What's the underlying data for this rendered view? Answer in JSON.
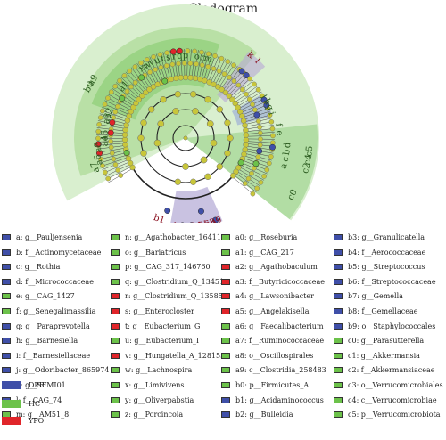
{
  "title": "Cladogram",
  "colors": {
    "DPR": "#3f4fa8",
    "HC": "#6cc24a",
    "YPO": "#e0252a",
    "node": "#c8c63a",
    "ring": "#9bd08a"
  },
  "groups": [
    {
      "name": "DPR",
      "color": "#3f4fa8"
    },
    {
      "name": "HC",
      "color": "#6cc24a"
    },
    {
      "name": "YPO",
      "color": "#e0252a"
    }
  ],
  "legend": [
    [
      {
        "text": "a: g__Pauljensenia",
        "group": "DPR"
      },
      {
        "text": "b: f__Actinomycetaceae",
        "group": "DPR"
      },
      {
        "text": "c: g__Rothia",
        "group": "DPR"
      },
      {
        "text": "d: f__Micrococcaceae",
        "group": "DPR"
      },
      {
        "text": "e: g__CAG_1427",
        "group": "HC"
      },
      {
        "text": "f: g__Senegalimassilia",
        "group": "HC"
      },
      {
        "text": "g: g__Paraprevotella",
        "group": "DPR"
      },
      {
        "text": "h: g__Barnesiella",
        "group": "DPR"
      },
      {
        "text": "i: f__Barnesiellaceae",
        "group": "DPR"
      },
      {
        "text": "j: g__Odoribacter_865974",
        "group": "DPR"
      },
      {
        "text": "k: g__SFMI01",
        "group": "DPR"
      },
      {
        "text": "l: f__CAG_74",
        "group": "DPR"
      },
      {
        "text": "m: g__AM51_8",
        "group": "HC"
      }
    ],
    [
      {
        "text": "n: g__Agathobacter_164117",
        "group": "HC"
      },
      {
        "text": "o: g__Bariatricus",
        "group": "HC"
      },
      {
        "text": "p: g__CAG_317_146760",
        "group": "HC"
      },
      {
        "text": "q: g__Clostridium_Q_134516",
        "group": "HC"
      },
      {
        "text": "r: g__Clostridium_Q_135853",
        "group": "YPO"
      },
      {
        "text": "s: g__Enterocloster",
        "group": "YPO"
      },
      {
        "text": "t: g__Eubacterium_G",
        "group": "YPO"
      },
      {
        "text": "u: g__Eubacterium_I",
        "group": "HC"
      },
      {
        "text": "v: g__Hungatella_A_128155",
        "group": "YPO"
      },
      {
        "text": "w: g__Lachnospira",
        "group": "HC"
      },
      {
        "text": "x: g__Limivivens",
        "group": "HC"
      },
      {
        "text": "y: g__Oliverpabstia",
        "group": "HC"
      },
      {
        "text": "z: g__Porcincola",
        "group": "HC"
      }
    ],
    [
      {
        "text": "a0: g__Roseburia",
        "group": "HC"
      },
      {
        "text": "a1: g__CAG_217",
        "group": "HC"
      },
      {
        "text": "a2: g__Agathobaculum",
        "group": "YPO"
      },
      {
        "text": "a3: f__Butyricicoccaceae",
        "group": "YPO"
      },
      {
        "text": "a4: g__Lawsonibacter",
        "group": "YPO"
      },
      {
        "text": "a5: g__Angelakisella",
        "group": "YPO"
      },
      {
        "text": "a6: g__Faecalibacterium",
        "group": "HC"
      },
      {
        "text": "a7: f__Ruminococcaceae",
        "group": "HC"
      },
      {
        "text": "a8: o__Oscillospirales",
        "group": "HC"
      },
      {
        "text": "a9: c__Clostridia_258483",
        "group": "HC"
      },
      {
        "text": "b0: p__Firmicutes_A",
        "group": "HC"
      },
      {
        "text": "b1: g__Acidaminococcus",
        "group": "DPR"
      },
      {
        "text": "b2: g__Bulleidia",
        "group": "DPR"
      }
    ],
    [
      {
        "text": "b3: g__Granulicatella",
        "group": "DPR"
      },
      {
        "text": "b4: f__Aerococcaceae",
        "group": "DPR"
      },
      {
        "text": "b5: g__Streptococcus",
        "group": "DPR"
      },
      {
        "text": "b6: f__Streptococcaceae",
        "group": "DPR"
      },
      {
        "text": "b7: g__Gemella",
        "group": "DPR"
      },
      {
        "text": "b8: f__Gemellaceae",
        "group": "DPR"
      },
      {
        "text": "b9: o__Staphylococcales",
        "group": "DPR"
      },
      {
        "text": "c0: g__Parasutterella",
        "group": "HC"
      },
      {
        "text": "c1: g__Akkermansia",
        "group": "HC"
      },
      {
        "text": "c2: f__Akkermansiaceae",
        "group": "HC"
      },
      {
        "text": "c3: o__Verrucomicrobiales",
        "group": "HC"
      },
      {
        "text": "c4: c__Verrucomicrobiae",
        "group": "HC"
      },
      {
        "text": "c5: p__Verrucomicrobiota",
        "group": "HC"
      }
    ]
  ],
  "outer_labels": [
    {
      "text": "b0",
      "angle": -62,
      "r": 122,
      "color": "#2a5a1e"
    },
    {
      "text": "a9",
      "angle": -58,
      "r": 122,
      "color": "#2a5a1e"
    },
    {
      "text": "x",
      "angle": -32,
      "r": 92,
      "color": "#2a5a1e"
    },
    {
      "text": "w",
      "angle": -28,
      "r": 92,
      "color": "#2a5a1e"
    },
    {
      "text": "v",
      "angle": -24,
      "r": 92,
      "color": "#2a5a1e"
    },
    {
      "text": "u",
      "angle": -20,
      "r": 92,
      "color": "#2a5a1e"
    },
    {
      "text": "t",
      "angle": -16,
      "r": 92,
      "color": "#2a5a1e"
    },
    {
      "text": "s",
      "angle": -12,
      "r": 92,
      "color": "#2a5a1e"
    },
    {
      "text": "r",
      "angle": -8,
      "r": 92,
      "color": "#2a5a1e"
    },
    {
      "text": "q",
      "angle": -4,
      "r": 92,
      "color": "#2a5a1e"
    },
    {
      "text": "p",
      "angle": 0,
      "r": 92,
      "color": "#2a5a1e"
    },
    {
      "text": "o",
      "angle": 8,
      "r": 92,
      "color": "#2a5a1e"
    },
    {
      "text": "r",
      "angle": 12,
      "r": 92,
      "color": "#2a5a1e"
    },
    {
      "text": "m",
      "angle": 16,
      "r": 92,
      "color": "#2a5a1e"
    },
    {
      "text": "k",
      "angle": 38,
      "r": 118,
      "color": "#8a1020"
    },
    {
      "text": "l",
      "angle": 43,
      "r": 118,
      "color": "#8a1020"
    },
    {
      "text": "j",
      "angle": 62,
      "r": 100,
      "color": "#2a5a1e"
    },
    {
      "text": "h",
      "angle": 66,
      "r": 100,
      "color": "#2a5a1e"
    },
    {
      "text": "g",
      "angle": 70,
      "r": 100,
      "color": "#2a5a1e"
    },
    {
      "text": "i",
      "angle": 74,
      "r": 100,
      "color": "#2a5a1e"
    },
    {
      "text": "f",
      "angle": 82,
      "r": 105,
      "color": "#2a5a1e"
    },
    {
      "text": "e",
      "angle": 87,
      "r": 105,
      "color": "#2a5a1e"
    },
    {
      "text": "d",
      "angle": 94,
      "r": 115,
      "color": "#2a5a1e"
    },
    {
      "text": "b",
      "angle": 98,
      "r": 115,
      "color": "#2a5a1e"
    },
    {
      "text": "c",
      "angle": 102,
      "r": 115,
      "color": "#2a5a1e"
    },
    {
      "text": "a",
      "angle": 106,
      "r": 115,
      "color": "#2a5a1e"
    },
    {
      "text": "c5",
      "angle": 96,
      "r": 140,
      "color": "#2a5a1e"
    },
    {
      "text": "c4",
      "angle": 100,
      "r": 140,
      "color": "#2a5a1e"
    },
    {
      "text": "c2",
      "angle": 104,
      "r": 140,
      "color": "#2a5a1e"
    },
    {
      "text": "c0",
      "angle": 118,
      "r": 136,
      "color": "#2a5a1e"
    },
    {
      "text": "b9",
      "angle": 160,
      "r": 100,
      "color": "#8a1020"
    },
    {
      "text": "b8",
      "angle": 164,
      "r": 100,
      "color": "#8a1020"
    },
    {
      "text": "b6",
      "angle": 168,
      "r": 100,
      "color": "#8a1020"
    },
    {
      "text": "b5",
      "angle": 172,
      "r": 100,
      "color": "#8a1020"
    },
    {
      "text": "b3",
      "angle": 178,
      "r": 100,
      "color": "#8a1020"
    },
    {
      "text": "b2",
      "angle": 184,
      "r": 100,
      "color": "#8a1020"
    },
    {
      "text": "b1",
      "angle": 198,
      "r": 96,
      "color": "#8a1020"
    },
    {
      "text": "a7",
      "angle": -108,
      "r": 106,
      "color": "#2a5a1e"
    },
    {
      "text": "a6",
      "angle": -104,
      "r": 100,
      "color": "#2a5a1e"
    },
    {
      "text": "a8",
      "angle": -96,
      "r": 98,
      "color": "#2a5a1e"
    },
    {
      "text": "a4",
      "angle": -92,
      "r": 90,
      "color": "#2a5a1e"
    },
    {
      "text": "a5",
      "angle": -88,
      "r": 90,
      "color": "#2a5a1e"
    },
    {
      "text": "a3",
      "angle": -76,
      "r": 90,
      "color": "#2a5a1e"
    },
    {
      "text": "a2",
      "angle": -72,
      "r": 90,
      "color": "#2a5a1e"
    },
    {
      "text": "a1",
      "angle": -50,
      "r": 90,
      "color": "#2a5a1e"
    }
  ]
}
